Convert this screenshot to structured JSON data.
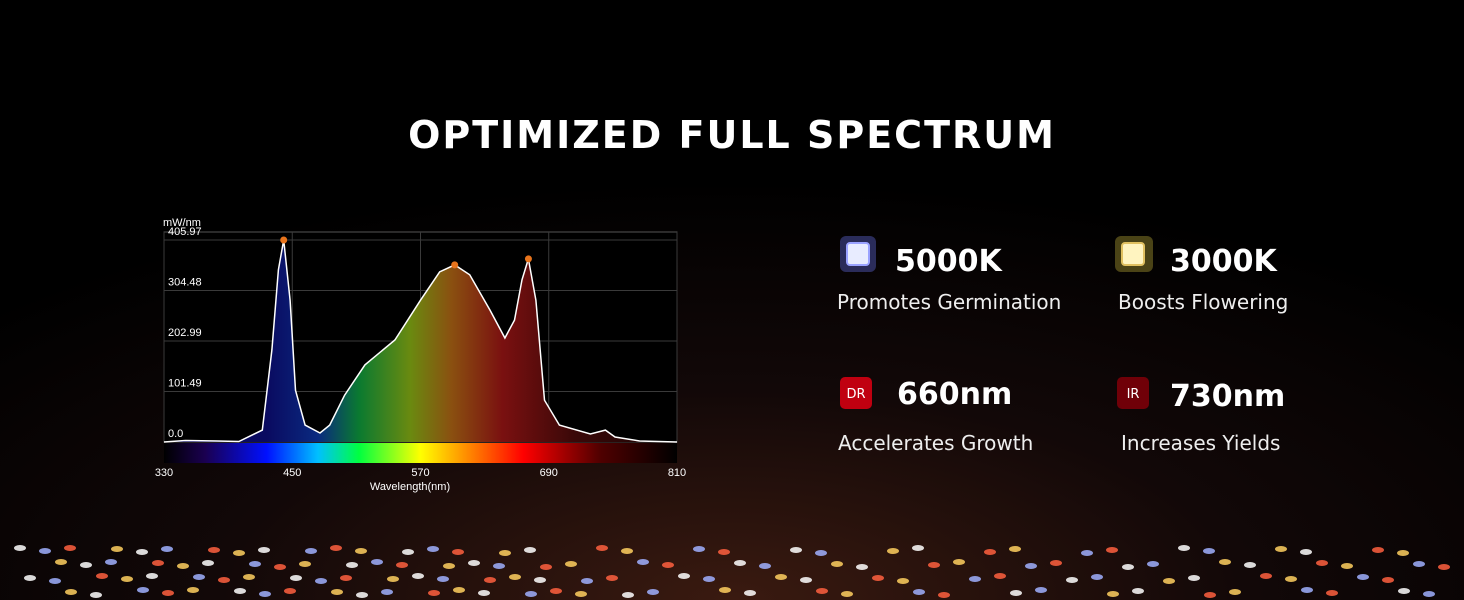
{
  "title": "OPTIMIZED FULL SPECTRUM",
  "chart_data": {
    "type": "area",
    "y_label": "mW/nm",
    "x_label": "Wavelength(nm)",
    "x": [
      330,
      350,
      380,
      400,
      422,
      431,
      437,
      442,
      448,
      453,
      462,
      476,
      485,
      499,
      518,
      546,
      570,
      588,
      602,
      616,
      635,
      649,
      658,
      665,
      671,
      678,
      686,
      700,
      729,
      743,
      752,
      775,
      810
    ],
    "values": [
      0,
      3,
      2,
      1,
      24,
      185,
      346,
      405.97,
      285,
      104,
      34,
      18,
      34,
      94,
      155,
      205,
      285,
      342,
      356,
      336,
      265,
      209,
      245,
      326,
      368,
      285,
      84,
      34,
      16,
      24,
      10,
      2,
      0
    ],
    "color": "#ffffff",
    "marker_color": "#e8741c",
    "xlim": [
      330,
      810
    ],
    "ylim": [
      0,
      405.97
    ],
    "xticks": [
      330,
      450,
      570,
      690,
      810
    ],
    "yticks": [
      {
        "value": 0,
        "label": "0.0"
      },
      101.49,
      202.99,
      304.48,
      405.97
    ],
    "grid": true
  },
  "features": [
    {
      "title": "5000K",
      "subtitle": "Promotes Germination"
    },
    {
      "title": "3000K",
      "subtitle": "Boosts Flowering"
    },
    {
      "icon_label": "DR",
      "title": "660nm",
      "subtitle": "Accelerates Growth"
    },
    {
      "icon_label": "IR",
      "title": "730nm",
      "subtitle": "Increases Yields"
    }
  ]
}
